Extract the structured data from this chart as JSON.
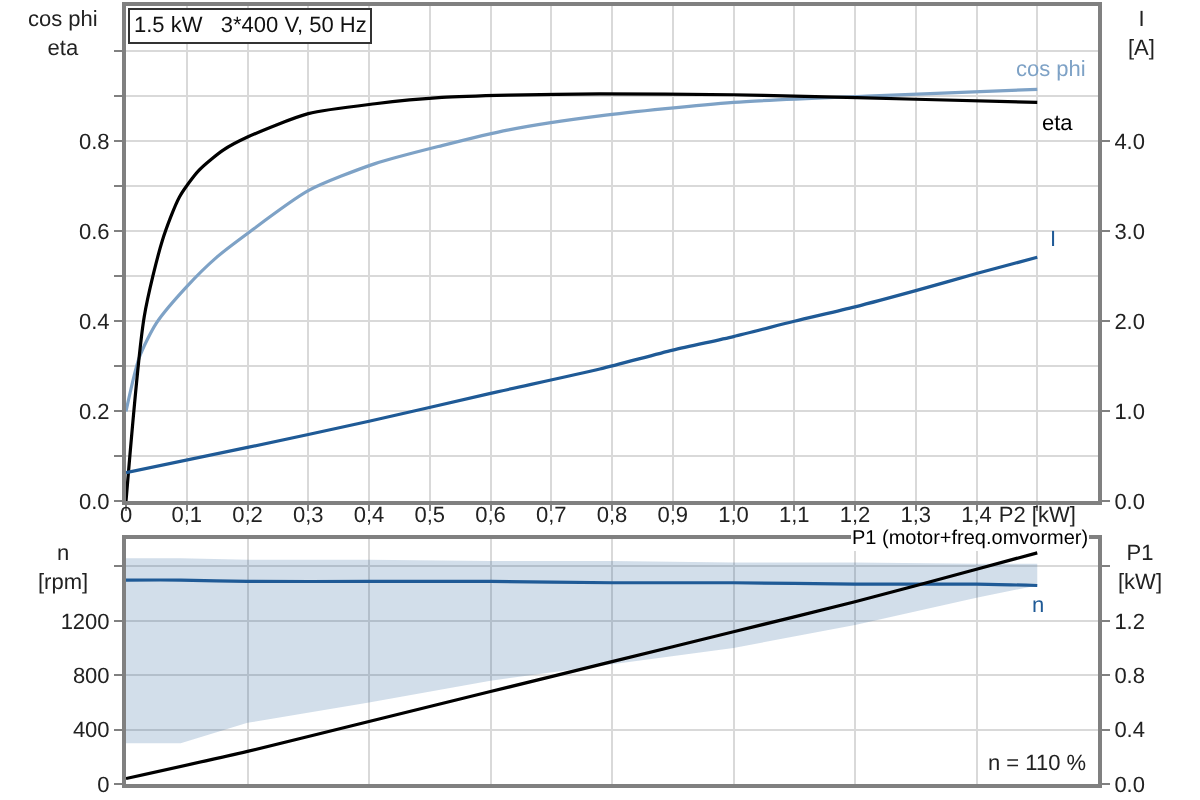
{
  "chart_data": [
    {
      "type": "line",
      "title": "1.5 kW   3*400 V, 50 Hz",
      "ylabel": "cos phi\neta",
      "y2label": "I\n[A]",
      "grid": true,
      "xlim": [
        0,
        1.6
      ],
      "xticks": [
        0,
        {
          "value": 0.1,
          "label": "0,1"
        },
        {
          "value": 0.2,
          "label": "0,2"
        },
        {
          "value": 0.3,
          "label": "0,3"
        },
        {
          "value": 0.4,
          "label": "0,4"
        },
        {
          "value": 0.5,
          "label": "0,5"
        },
        {
          "value": 0.6,
          "label": "0,6"
        },
        {
          "value": 0.7,
          "label": "0,7"
        },
        {
          "value": 0.8,
          "label": "0,8"
        },
        {
          "value": 0.9,
          "label": "0,9"
        },
        {
          "value": 1.0,
          "label": "1,0"
        },
        {
          "value": 1.1,
          "label": "1,1"
        },
        {
          "value": 1.2,
          "label": "1,2"
        },
        {
          "value": 1.3,
          "label": "1,3"
        },
        {
          "value": 1.4,
          "label": "1,4"
        },
        {
          "value": 1.5,
          "label": "P2 [kW]"
        }
      ],
      "ylim": [
        0,
        1.1
      ],
      "yticks": [
        {
          "value": 0,
          "label": "0.0"
        },
        {
          "value": 0.1,
          "label": null
        },
        0.2,
        {
          "value": 0.3,
          "label": null
        },
        0.4,
        {
          "value": 0.5,
          "label": null
        },
        0.6,
        {
          "value": 0.7,
          "label": null
        },
        0.8,
        {
          "value": 0.9,
          "label": null
        },
        {
          "value": 1.0,
          "label": null
        }
      ],
      "y2lim": [
        0,
        5.5
      ],
      "y2ticks": [
        {
          "value": 0,
          "label": "0.0"
        },
        {
          "value": 1,
          "label": "1.0"
        },
        {
          "value": 2,
          "label": "2.0"
        },
        {
          "value": 3,
          "label": "3.0"
        },
        {
          "value": 4,
          "label": "4.0"
        }
      ],
      "series": [
        {
          "name": "cos phi",
          "color": "#7ea2c6",
          "x": [
            0,
            0.022,
            0.05,
            0.1,
            0.15,
            0.2,
            0.3,
            0.41,
            0.52,
            0.63,
            0.78,
            1.0,
            1.22,
            1.5
          ],
          "values": [
            0.2,
            0.32,
            0.396,
            0.477,
            0.543,
            0.595,
            0.69,
            0.75,
            0.79,
            0.825,
            0.856,
            0.886,
            0.9,
            0.915
          ]
        },
        {
          "name": "eta",
          "color": "#000000",
          "x": [
            0,
            0.03,
            0.06,
            0.088,
            0.12,
            0.16,
            0.2,
            0.3,
            0.41,
            0.52,
            0.63,
            0.78,
            1.0,
            1.1,
            1.3,
            1.5
          ],
          "values": [
            0,
            0.41,
            0.58,
            0.676,
            0.735,
            0.78,
            0.809,
            0.861,
            0.883,
            0.897,
            0.902,
            0.905,
            0.903,
            0.9,
            0.893,
            0.886
          ]
        },
        {
          "name": "I",
          "color": "#1f5a96",
          "axis": "y2",
          "x": [
            0,
            0.2,
            0.4,
            0.6,
            0.78,
            0.9,
            1.0,
            1.1,
            1.2,
            1.3,
            1.4,
            1.5
          ],
          "values": [
            0.32,
            0.6,
            0.89,
            1.2,
            1.47,
            1.68,
            1.83,
            2.0,
            2.16,
            2.34,
            2.53,
            2.71
          ]
        }
      ]
    },
    {
      "type": "line",
      "ylabel": "n\n[rpm]",
      "y2label": "P1\n[kW]",
      "grid": true,
      "tick_labels": "y",
      "annotations": [
        "n = 110 %"
      ],
      "xlim": [
        0,
        1.6
      ],
      "xticks": [
        0,
        0.2,
        0.4,
        0.6,
        0.8,
        1.0,
        1.2,
        1.4
      ],
      "ylim": [
        0,
        1800
      ],
      "yticks": [
        0,
        400,
        800,
        1200,
        {
          "value": 1600,
          "label": null
        }
      ],
      "y2lim": [
        0,
        1.8
      ],
      "y2ticks": [
        {
          "value": 0,
          "label": "0.0"
        },
        0.4,
        0.8,
        1.2,
        {
          "value": 1.6,
          "label": null
        }
      ],
      "series": [
        {
          "name": "n",
          "color": "#1f5a96",
          "x": [
            0,
            0.09,
            0.2,
            0.4,
            0.6,
            0.8,
            1.0,
            1.2,
            1.4,
            1.5
          ],
          "values": [
            1500,
            1500,
            1490,
            1490,
            1490,
            1480,
            1480,
            1470,
            1470,
            1460
          ],
          "lower": [
            300,
            300,
            450,
            600,
            760,
            880,
            1000,
            1170,
            1370,
            1460
          ],
          "upper": [
            1660,
            1660,
            1650,
            1650,
            1640,
            1640,
            1630,
            1630,
            1620,
            1620
          ]
        },
        {
          "name": "P1 (motor+freq.omvormer)",
          "color": "#000000",
          "axis": "y2",
          "x": [
            0,
            0.2,
            0.4,
            0.6,
            0.8,
            1.0,
            1.2,
            1.4,
            1.5
          ],
          "values": [
            0.04,
            0.24,
            0.46,
            0.68,
            0.9,
            1.12,
            1.34,
            1.58,
            1.7
          ]
        }
      ]
    }
  ]
}
